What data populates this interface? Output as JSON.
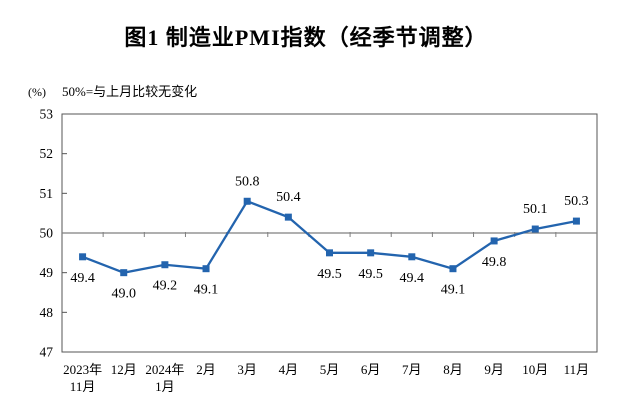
{
  "figure": {
    "title": "图1  制造业PMI指数（经季节调整）",
    "unit_label": "(%)",
    "note": "50%=与上月比较无变化"
  },
  "chart_data": {
    "type": "line",
    "title": "图1  制造业PMI指数（经季节调整）",
    "note": "50%=与上月比较无变化",
    "ylabel": "(%)",
    "categories": [
      "2023年\n11月",
      "12月",
      "2024年\n1月",
      "2月",
      "3月",
      "4月",
      "5月",
      "6月",
      "7月",
      "8月",
      "9月",
      "10月",
      "11月"
    ],
    "values": [
      49.4,
      49.0,
      49.2,
      49.1,
      50.8,
      50.4,
      49.5,
      49.5,
      49.4,
      49.1,
      49.8,
      50.1,
      50.3
    ],
    "data_labels": [
      "49.4",
      "49.0",
      "49.2",
      "49.1",
      "50.8",
      "50.4",
      "49.5",
      "49.5",
      "49.4",
      "49.1",
      "49.8",
      "50.1",
      "50.3"
    ],
    "label_positions": [
      "below",
      "below",
      "below",
      "below",
      "above",
      "above",
      "below",
      "below",
      "below",
      "below",
      "below",
      "above",
      "above"
    ],
    "ylim": [
      47,
      53
    ],
    "yticks": [
      47,
      48,
      49,
      50,
      51,
      52,
      53
    ],
    "reference_line": 50,
    "grid": false,
    "legend": "none",
    "line_color": "#2364AE",
    "reference_line_color": "#7F7F7F",
    "axis_color": "#555555",
    "text_color": "#000000"
  }
}
